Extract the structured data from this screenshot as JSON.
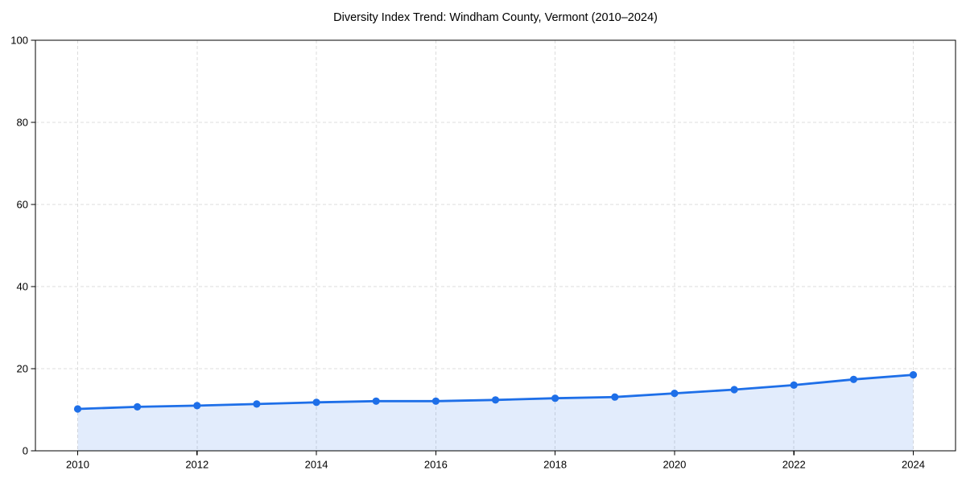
{
  "chart_data": {
    "type": "line",
    "title": "Diversity Index Trend: Windham County, Vermont (2010–2024)",
    "xlabel": "",
    "ylabel": "",
    "x": [
      2010,
      2011,
      2012,
      2013,
      2014,
      2015,
      2016,
      2017,
      2018,
      2019,
      2020,
      2021,
      2022,
      2023,
      2024
    ],
    "values": [
      10.2,
      10.7,
      11.0,
      11.4,
      11.8,
      12.1,
      12.1,
      12.4,
      12.8,
      13.1,
      14.0,
      14.9,
      16.0,
      17.4,
      18.5
    ],
    "series_name": "Diversity Index",
    "ylim": [
      0,
      100
    ],
    "yticks": [
      0,
      20,
      40,
      60,
      80,
      100
    ],
    "xticks": [
      2010,
      2012,
      2014,
      2016,
      2018,
      2020,
      2022,
      2024
    ],
    "grid": "dashed",
    "legend": "none",
    "marker": "circle",
    "area_fill": true,
    "colors": {
      "line": "#1e6fe8",
      "marker": "#1e6fe8",
      "fill": "rgba(30,111,232,0.13)",
      "grid": "#dcdcdc",
      "axis": "#000000",
      "text": "#000000",
      "background": "#ffffff"
    }
  }
}
